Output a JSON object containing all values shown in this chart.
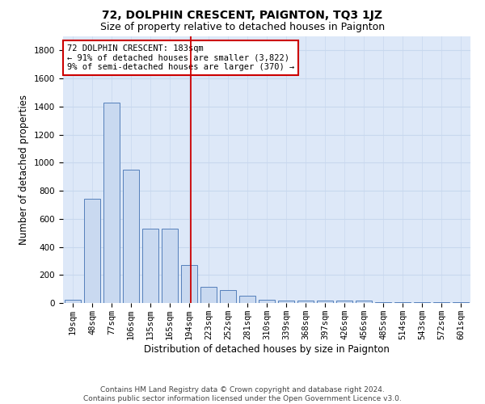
{
  "title": "72, DOLPHIN CRESCENT, PAIGNTON, TQ3 1JZ",
  "subtitle": "Size of property relative to detached houses in Paignton",
  "xlabel": "Distribution of detached houses by size in Paignton",
  "ylabel": "Number of detached properties",
  "bar_labels": [
    "19sqm",
    "48sqm",
    "77sqm",
    "106sqm",
    "135sqm",
    "165sqm",
    "194sqm",
    "223sqm",
    "252sqm",
    "281sqm",
    "310sqm",
    "339sqm",
    "368sqm",
    "397sqm",
    "426sqm",
    "456sqm",
    "485sqm",
    "514sqm",
    "543sqm",
    "572sqm",
    "601sqm"
  ],
  "bar_heights": [
    25,
    740,
    1430,
    950,
    530,
    530,
    270,
    115,
    95,
    50,
    25,
    15,
    15,
    15,
    15,
    15,
    5,
    5,
    5,
    5,
    5
  ],
  "bar_color": "#c9d9f0",
  "bar_edge_color": "#5580bb",
  "bar_edge_width": 0.7,
  "grid_color": "#c8d8ee",
  "background_color": "#dde8f8",
  "red_line_x": 6.1,
  "red_line_color": "#cc0000",
  "annotation_box_text": "72 DOLPHIN CRESCENT: 183sqm\n← 91% of detached houses are smaller (3,822)\n9% of semi-detached houses are larger (370) →",
  "annotation_box_color": "white",
  "annotation_box_edge_color": "#cc0000",
  "ylim": [
    0,
    1900
  ],
  "yticks": [
    0,
    200,
    400,
    600,
    800,
    1000,
    1200,
    1400,
    1600,
    1800
  ],
  "footer_text": "Contains HM Land Registry data © Crown copyright and database right 2024.\nContains public sector information licensed under the Open Government Licence v3.0.",
  "title_fontsize": 10,
  "subtitle_fontsize": 9,
  "xlabel_fontsize": 8.5,
  "ylabel_fontsize": 8.5,
  "tick_fontsize": 7.5,
  "annotation_fontsize": 7.5,
  "footer_fontsize": 6.5
}
